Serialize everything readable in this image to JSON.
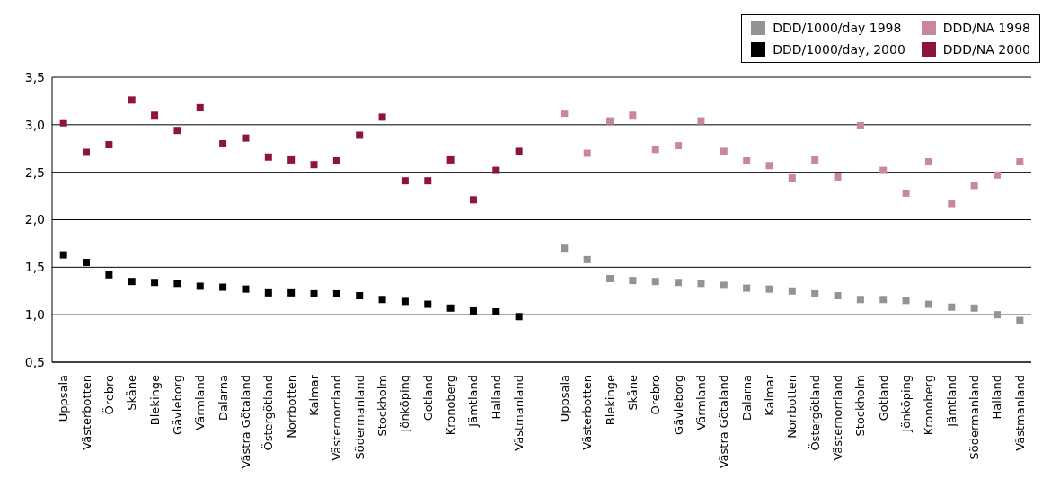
{
  "chart_data": {
    "type": "scatter",
    "marker": "square",
    "grid": "y",
    "legend": "top right",
    "categories": [
      "Uppsala",
      "Västerbotten",
      "Örebro",
      "Skåne",
      "Blekinge",
      "Gävleborg",
      "Värmland",
      "Dalarna",
      "Västra Götaland",
      "Östergötland",
      "Norrbotten",
      "Kalmar",
      "Västernorrland",
      "Södermanland",
      "Stockholm",
      "Jönköping",
      "Gotland",
      "Kronoberg",
      "Jämtland",
      "Halland",
      "Västmanland",
      null,
      "Uppsala",
      "Västerbotten",
      "Blekinge",
      "Skåne",
      "Örebro",
      "Gävleborg",
      "Värmland",
      "Västra Götaland",
      "Dalarna",
      "Kalmar",
      "Norrbotten",
      "Östergötland",
      "Västernorrland",
      "Stockholm",
      "Gotland",
      "Jönköping",
      "Kronoberg",
      "Jämtland",
      "Södermanland",
      "Halland",
      "Västmanland"
    ],
    "ylim": [
      0.5,
      3.5
    ],
    "yticks": [
      {
        "value": 0.5,
        "label": "0,5"
      },
      {
        "value": 1.0,
        "label": "1,0"
      },
      {
        "value": 1.5,
        "label": "1,5"
      },
      {
        "value": 2.0,
        "label": "2,0"
      },
      {
        "value": 2.5,
        "label": "2,5"
      },
      {
        "value": 3.0,
        "label": "3,0"
      },
      {
        "value": 3.5,
        "label": "3,5"
      }
    ],
    "series": [
      {
        "name": "DDD/1000/day 1998",
        "color": "#939393",
        "values": [
          null,
          null,
          null,
          null,
          null,
          null,
          null,
          null,
          null,
          null,
          null,
          null,
          null,
          null,
          null,
          null,
          null,
          null,
          null,
          null,
          null,
          null,
          1.7,
          1.58,
          1.38,
          1.36,
          1.35,
          1.34,
          1.33,
          1.31,
          1.28,
          1.27,
          1.25,
          1.22,
          1.2,
          1.16,
          1.16,
          1.15,
          1.11,
          1.08,
          1.07,
          1.0,
          0.94
        ]
      },
      {
        "name": "DDD/NA 1998",
        "color": "#c9879b",
        "values": [
          null,
          null,
          null,
          null,
          null,
          null,
          null,
          null,
          null,
          null,
          null,
          null,
          null,
          null,
          null,
          null,
          null,
          null,
          null,
          null,
          null,
          null,
          3.12,
          2.7,
          3.04,
          3.1,
          2.74,
          2.78,
          3.04,
          2.72,
          2.62,
          2.57,
          2.44,
          2.63,
          2.45,
          2.99,
          2.52,
          2.28,
          2.61,
          2.17,
          2.36,
          2.47,
          2.61
        ]
      },
      {
        "name": "DDD/1000/day, 2000",
        "color": "#000000",
        "values": [
          1.63,
          1.55,
          1.42,
          1.35,
          1.34,
          1.33,
          1.3,
          1.29,
          1.27,
          1.23,
          1.23,
          1.22,
          1.22,
          1.2,
          1.16,
          1.14,
          1.11,
          1.07,
          1.04,
          1.03,
          0.98,
          null,
          null,
          null,
          null,
          null,
          null,
          null,
          null,
          null,
          null,
          null,
          null,
          null,
          null,
          null,
          null,
          null,
          null,
          null,
          null,
          null,
          null
        ]
      },
      {
        "name": "DDD/NA 2000",
        "color": "#8e1538",
        "values": [
          3.02,
          2.71,
          2.79,
          3.26,
          3.1,
          2.94,
          3.18,
          2.8,
          2.86,
          2.66,
          2.63,
          2.58,
          2.62,
          2.89,
          3.08,
          2.41,
          2.41,
          2.63,
          2.21,
          2.52,
          2.72,
          null,
          null,
          null,
          null,
          null,
          null,
          null,
          null,
          null,
          null,
          null,
          null,
          null,
          null,
          null,
          null,
          null,
          null,
          null,
          null,
          null,
          null
        ]
      }
    ]
  }
}
